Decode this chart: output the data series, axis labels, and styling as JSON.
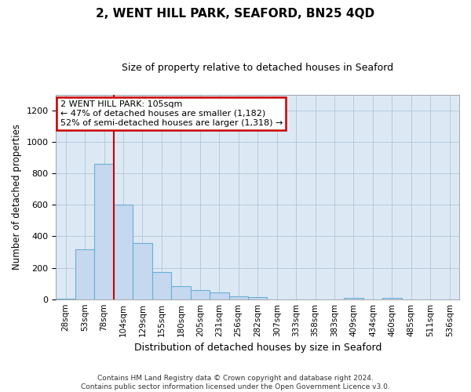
{
  "title": "2, WENT HILL PARK, SEAFORD, BN25 4QD",
  "subtitle": "Size of property relative to detached houses in Seaford",
  "xlabel": "Distribution of detached houses by size in Seaford",
  "ylabel": "Number of detached properties",
  "categories": [
    "28sqm",
    "53sqm",
    "78sqm",
    "104sqm",
    "129sqm",
    "155sqm",
    "180sqm",
    "205sqm",
    "231sqm",
    "256sqm",
    "282sqm",
    "307sqm",
    "333sqm",
    "358sqm",
    "383sqm",
    "409sqm",
    "434sqm",
    "460sqm",
    "485sqm",
    "511sqm",
    "536sqm"
  ],
  "values": [
    5,
    315,
    860,
    600,
    355,
    175,
    85,
    60,
    45,
    20,
    12,
    0,
    0,
    0,
    0,
    10,
    0,
    10,
    0,
    0,
    0
  ],
  "bar_color": "#c5d8ef",
  "bar_edge_color": "#6baed6",
  "vline_x": 2.5,
  "vline_color": "#cc0000",
  "annotation_text": "2 WENT HILL PARK: 105sqm\n← 47% of detached houses are smaller (1,182)\n52% of semi-detached houses are larger (1,318) →",
  "annotation_box_color": "#ffffff",
  "annotation_box_edge_color": "#cc0000",
  "ylim": [
    0,
    1300
  ],
  "yticks": [
    0,
    200,
    400,
    600,
    800,
    1000,
    1200
  ],
  "footer_line1": "Contains HM Land Registry data © Crown copyright and database right 2024.",
  "footer_line2": "Contains public sector information licensed under the Open Government Licence v3.0.",
  "background_color": "#ffffff",
  "axes_bg_color": "#dce9f5",
  "grid_color": "#b0c4d8"
}
